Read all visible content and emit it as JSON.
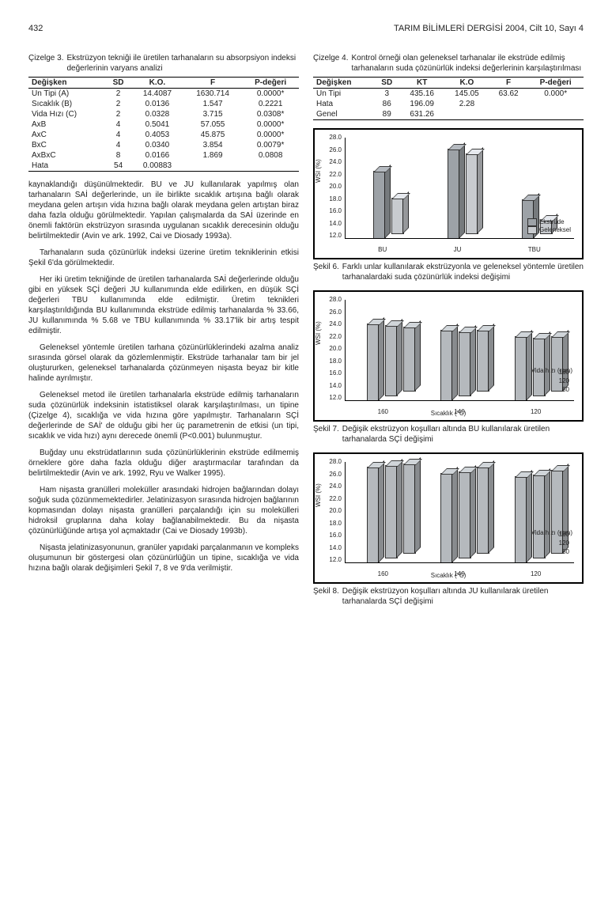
{
  "header": {
    "page_number": "432",
    "journal": "TARIM BİLİMLERİ DERGİSİ 2004, Cilt 10, Sayı 4"
  },
  "left": {
    "table3": {
      "caption_num": "Çizelge 3.",
      "caption": "Ekstrüzyon tekniği ile üretilen tarhanaların su absorpsiyon indeksi değerlerinin varyans analizi",
      "columns": [
        "Değişken",
        "SD",
        "K.O.",
        "F",
        "P-değeri"
      ],
      "rows": [
        [
          "Un Tipi (A)",
          "2",
          "14.4087",
          "1630.714",
          "0.0000*"
        ],
        [
          "Sıcaklık (B)",
          "2",
          "0.0136",
          "1.547",
          "0.2221"
        ],
        [
          "Vida Hızı (C)",
          "2",
          "0.0328",
          "3.715",
          "0.0308*"
        ],
        [
          "AxB",
          "4",
          "0.5041",
          "57.055",
          "0.0000*"
        ],
        [
          "AxC",
          "4",
          "0.4053",
          "45.875",
          "0.0000*"
        ],
        [
          "BxC",
          "4",
          "0.0340",
          "3.854",
          "0.0079*"
        ],
        [
          "AxBxC",
          "8",
          "0.0166",
          "1.869",
          "0.0808"
        ],
        [
          "Hata",
          "54",
          "0.00883",
          "",
          ""
        ]
      ]
    },
    "p1": "kaynaklandığı düşünülmektedir. BU ve JU kullanılarak yapılmış olan tarhanaların SAİ değerlerinde, un ile birlikte sıcaklık artışına bağlı olarak meydana gelen artışın vida hızına bağlı olarak meydana gelen artıştan biraz daha fazla olduğu görülmektedir. Yapılan çalışmalarda da SAİ üzerinde en önemli faktörün ekstrüzyon sırasında uygulanan sıcaklık derecesinin olduğu belirtilmektedir (Avin ve ark. 1992, Cai ve Diosady 1993a).",
    "p2": "Tarhanaların suda çözünürlük indeksi üzerine üretim tekniklerinin etkisi Şekil 6'da görülmektedir.",
    "p3": "Her iki üretim tekniğinde de üretilen tarhanalarda SAİ değerlerinde olduğu gibi en yüksek SÇİ değeri JU kullanımında elde edilirken, en düşük SÇİ değerleri TBU kullanımında elde edilmiştir. Üretim teknikleri karşılaştırıldığında BU kullanımında ekstrüde edilmiş tarhanalarda % 33.66, JU kullanımında % 5.68 ve TBU kullanımında % 33.17'lik bir artış tespit edilmiştir.",
    "p4": "Geleneksel yöntemle üretilen tarhana çözünürlüklerindeki azalma analiz sırasında görsel olarak da gözlemlenmiştir. Ekstrüde tarhanalar tam bir jel oluştururken, geleneksel tarhanalarda çözünmeyen nişasta beyaz bir kitle halinde ayrılmıştır.",
    "p5": "Geleneksel metod ile üretilen tarhanalarla ekstrüde edilmiş tarhanaların suda çözünürlük indeksinin istatistiksel olarak karşılaştırılması, un tipine (Çizelge 4), sıcaklığa ve vida hızına göre yapılmıştır. Tarhanaların SÇİ değerlerinde de SAİ' de olduğu gibi her üç parametrenin de etkisi (un tipi, sıcaklık ve vida hızı) aynı derecede önemli (P<0.001) bulunmuştur.",
    "p6": "Buğday unu ekstrüdatlarının suda çözünürlüklerinin ekstrüde edilmemiş örneklere göre daha fazla olduğu diğer araştırmacılar tarafından da belirtilmektedir (Avin ve ark. 1992, Ryu ve Walker 1995).",
    "p7": "Ham nişasta granülleri moleküller arasındaki hidrojen bağlarından dolayı soğuk suda çözünmemektedirler. Jelatinizasyon sırasında hidrojen bağlarının kopmasından dolayı nişasta granülleri parçalandığı için su molekülleri hidroksil gruplarına daha kolay bağlanabilmektedir. Bu da nişasta çözünürlüğünde artışa yol açmaktadır (Cai ve Diosady 1993b).",
    "p8": "Nişasta jelatinizasyonunun, granüler yapıdaki parçalanmanın ve kompleks oluşumunun bir göstergesi olan çözünürlüğün un tipine, sıcaklığa ve vida hızına bağlı olarak değişimleri Şekil 7, 8 ve 9'da verilmiştir."
  },
  "right": {
    "table4": {
      "caption_num": "Çizelge 4.",
      "caption": "Kontrol örneği olan geleneksel tarhanalar ile ekstrüde edilmiş tarhanaların suda çözünürlük indeksi değerlerinin karşılaştırılması",
      "columns": [
        "Değişken",
        "SD",
        "KT",
        "K.O",
        "F",
        "P-değeri"
      ],
      "rows": [
        [
          "Un Tipi",
          "3",
          "435.16",
          "145.05",
          "63.62",
          "0.000*"
        ],
        [
          "Hata",
          "86",
          "196.09",
          "2.28",
          "",
          ""
        ],
        [
          "Genel",
          "89",
          "631.26",
          "",
          "",
          ""
        ]
      ]
    },
    "fig6": {
      "caption_num": "Şekil 6.",
      "caption": "Farklı unlar kullanılarak ekstrüzyonla ve geleneksel yöntemle üretilen tarhanalardaki suda çözünürlük indeksi değişimi",
      "ylabel": "WSI (%)",
      "ymin": 12.0,
      "ymax": 28.0,
      "yticks": [
        "28.0",
        "26.0",
        "24.0",
        "22.0",
        "20.0",
        "18.0",
        "16.0",
        "14.0",
        "12.0"
      ],
      "x_categories": [
        "BU",
        "JU",
        "TBU"
      ],
      "series_names": [
        "Ekstrüde",
        "Geleneksel"
      ],
      "series_colors": [
        "#9da2a7",
        "#c8cbcf"
      ],
      "values": [
        [
          22.5,
          26.0,
          18.0
        ],
        [
          17.5,
          24.5,
          14.0
        ]
      ]
    },
    "fig7": {
      "caption_num": "Şekil 7.",
      "caption": "Değişik ekstrüzyon koşulları altında BU kullanılarak üretilen tarhanalarda SÇİ değişimi",
      "ylabel": "WSI (%)",
      "ymin": 12.0,
      "ymax": 28.0,
      "yticks": [
        "28.0",
        "26.0",
        "24.0",
        "22.0",
        "20.0",
        "18.0",
        "16.0",
        "14.0",
        "12.0"
      ],
      "x_categories": [
        "160",
        "140",
        "120"
      ],
      "xlabel": "Sıcaklık (°C)",
      "depth_label": "Vida hızı (rpm)",
      "depth_ticks": [
        "160",
        "120",
        "80"
      ],
      "bar_color": "#b5b9bd",
      "values": [
        [
          24.0,
          23.0,
          22.0
        ],
        [
          23.0,
          22.0,
          21.5
        ],
        [
          22.0,
          21.0,
          20.5
        ]
      ]
    },
    "fig8": {
      "caption_num": "Şekil 8.",
      "caption": "Değişik ekstrüzyon koşulları altında JU kullanılarak üretilen tarhanalarda SÇİ değişimi",
      "ylabel": "WSI (%)",
      "ymin": 12.0,
      "ymax": 28.0,
      "yticks": [
        "28.0",
        "26.0",
        "24.0",
        "22.0",
        "20.0",
        "18.0",
        "16.0",
        "14.0",
        "12.0"
      ],
      "x_categories": [
        "160",
        "140",
        "120"
      ],
      "xlabel": "Sıcaklık (°C)",
      "depth_label": "Vida hızı (rpm)",
      "depth_ticks": [
        "160",
        "120",
        "80"
      ],
      "bar_color": "#b5b9bd",
      "values": [
        [
          27.0,
          26.5,
          26.0
        ],
        [
          26.0,
          25.5,
          25.5
        ],
        [
          25.5,
          25.0,
          25.0
        ]
      ]
    }
  }
}
